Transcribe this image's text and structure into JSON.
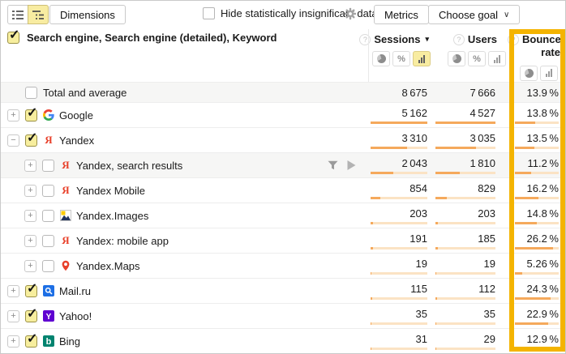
{
  "toolbar": {
    "dimensions_label": "Dimensions",
    "hide_insignificant_label": "Hide statistically insignificant data",
    "metrics_label": "Metrics",
    "choose_goal_label": "Choose goal"
  },
  "dimension_row": {
    "label": "Search engine, Search engine (detailed), Keyword",
    "checked": true
  },
  "columns": [
    {
      "label": "Sessions",
      "sorted": true,
      "toggles": [
        "pie",
        "percent",
        "bar"
      ],
      "selected_toggle": "bar"
    },
    {
      "label": "Users",
      "toggles": [
        "pie",
        "percent",
        "bar"
      ],
      "selected_toggle": null
    },
    {
      "label": "Bounce rate",
      "toggles": [
        "pie",
        "bar"
      ],
      "selected_toggle": null,
      "highlighted": true
    }
  ],
  "bar_scales": {
    "sessions": 5162,
    "users": 4527,
    "bounce": 30
  },
  "colors": {
    "highlight_border": "#f4b400",
    "bar_fill": "#f5a95c",
    "bar_track": "#fbe3c4",
    "selected_toggle_bg": "#f8eca1"
  },
  "rows": [
    {
      "name": "Total and average",
      "icon": null,
      "level": 0,
      "expand": null,
      "checked": false,
      "gray": true,
      "actions": false,
      "bars": false,
      "sessions_value": 8675,
      "users_value": 7666,
      "bounce_value": 13.9,
      "sessions_text": "8 675",
      "users_text": "7 666",
      "bounce_text": "13.9 %"
    },
    {
      "name": "Google",
      "icon": "google",
      "level": 0,
      "expand": "+",
      "checked": true,
      "gray": false,
      "actions": false,
      "bars": true,
      "sessions_value": 5162,
      "users_value": 4527,
      "bounce_value": 13.8,
      "sessions_text": "5 162",
      "users_text": "4 527",
      "bounce_text": "13.8 %"
    },
    {
      "name": "Yandex",
      "icon": "yandex",
      "level": 0,
      "expand": "−",
      "checked": true,
      "gray": false,
      "actions": false,
      "bars": true,
      "sessions_value": 3310,
      "users_value": 3035,
      "bounce_value": 13.5,
      "sessions_text": "3 310",
      "users_text": "3 035",
      "bounce_text": "13.5 %"
    },
    {
      "name": "Yandex, search results",
      "icon": "yandex",
      "level": 1,
      "expand": "+",
      "checked": false,
      "gray": true,
      "actions": true,
      "bars": true,
      "sessions_value": 2043,
      "users_value": 1810,
      "bounce_value": 11.2,
      "sessions_text": "2 043",
      "users_text": "1 810",
      "bounce_text": "11.2 %"
    },
    {
      "name": "Yandex Mobile",
      "icon": "yandex",
      "level": 1,
      "expand": "+",
      "checked": false,
      "gray": false,
      "actions": false,
      "bars": true,
      "sessions_value": 854,
      "users_value": 829,
      "bounce_value": 16.2,
      "sessions_text": "854",
      "users_text": "829",
      "bounce_text": "16.2 %"
    },
    {
      "name": "Yandex.Images",
      "icon": "images",
      "level": 1,
      "expand": "+",
      "checked": false,
      "gray": false,
      "actions": false,
      "bars": true,
      "sessions_value": 203,
      "users_value": 203,
      "bounce_value": 14.8,
      "sessions_text": "203",
      "users_text": "203",
      "bounce_text": "14.8 %"
    },
    {
      "name": "Yandex: mobile app",
      "icon": "yandex",
      "level": 1,
      "expand": "+",
      "checked": false,
      "gray": false,
      "actions": false,
      "bars": true,
      "sessions_value": 191,
      "users_value": 185,
      "bounce_value": 26.2,
      "sessions_text": "191",
      "users_text": "185",
      "bounce_text": "26.2 %"
    },
    {
      "name": "Yandex.Maps",
      "icon": "maps",
      "level": 1,
      "expand": "+",
      "checked": false,
      "gray": false,
      "actions": false,
      "bars": true,
      "sessions_value": 19,
      "users_value": 19,
      "bounce_value": 5.26,
      "sessions_text": "19",
      "users_text": "19",
      "bounce_text": "5.26 %"
    },
    {
      "name": "Mail.ru",
      "icon": "mailru",
      "level": 0,
      "expand": "+",
      "checked": true,
      "gray": false,
      "actions": false,
      "bars": true,
      "sessions_value": 115,
      "users_value": 112,
      "bounce_value": 24.3,
      "sessions_text": "115",
      "users_text": "112",
      "bounce_text": "24.3 %"
    },
    {
      "name": "Yahoo!",
      "icon": "yahoo",
      "level": 0,
      "expand": "+",
      "checked": true,
      "gray": false,
      "actions": false,
      "bars": true,
      "sessions_value": 35,
      "users_value": 35,
      "bounce_value": 22.9,
      "sessions_text": "35",
      "users_text": "35",
      "bounce_text": "22.9 %"
    },
    {
      "name": "Bing",
      "icon": "bing",
      "level": 0,
      "expand": "+",
      "checked": true,
      "gray": false,
      "actions": false,
      "bars": true,
      "sessions_value": 31,
      "users_value": 29,
      "bounce_value": 12.9,
      "sessions_text": "31",
      "users_text": "29",
      "bounce_text": "12.9 %"
    }
  ]
}
